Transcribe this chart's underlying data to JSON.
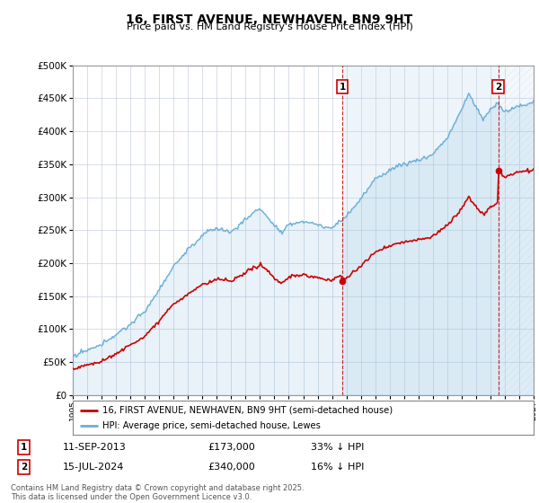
{
  "title": "16, FIRST AVENUE, NEWHAVEN, BN9 9HT",
  "subtitle": "Price paid vs. HM Land Registry's House Price Index (HPI)",
  "bg_color": "#e8eef8",
  "plot_bg_color": "#ffffff",
  "grid_color": "#c8d0e0",
  "hpi_color": "#6aaed6",
  "hpi_fill_color": "#c8dff0",
  "price_color": "#cc0000",
  "marker1_x": 2013.71,
  "marker2_x": 2024.54,
  "legend_line1": "16, FIRST AVENUE, NEWHAVEN, BN9 9HT (semi-detached house)",
  "legend_line2": "HPI: Average price, semi-detached house, Lewes",
  "footer": "Contains HM Land Registry data © Crown copyright and database right 2025.\nThis data is licensed under the Open Government Licence v3.0.",
  "ylim": [
    0,
    500000
  ],
  "yticks": [
    0,
    50000,
    100000,
    150000,
    200000,
    250000,
    300000,
    350000,
    400000,
    450000,
    500000
  ],
  "x_start_year": 1995,
  "x_end_year": 2027
}
